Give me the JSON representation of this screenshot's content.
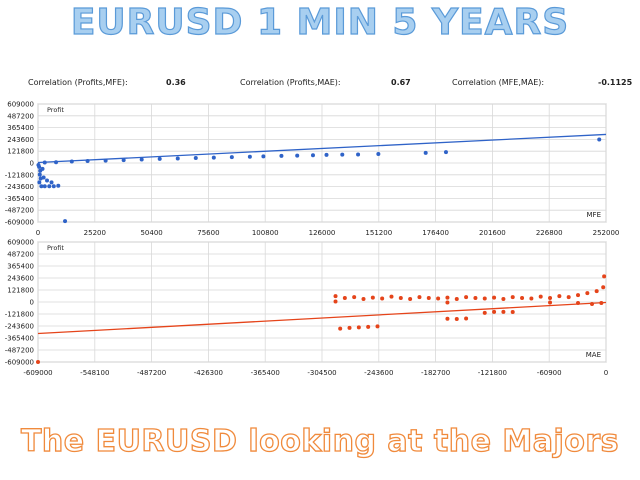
{
  "header": {
    "title": "EURUSD 1 MIN 5 YEARS"
  },
  "footer": {
    "title": "The EURUSD looking at the Majors"
  },
  "correlations": [
    {
      "label": "Correlation (Profits,MFE):",
      "value": "0.36"
    },
    {
      "label": "Correlation (Profits,MAE):",
      "value": "0.67"
    },
    {
      "label": "Correlation (MFE,MAE):",
      "value": "-0.1125"
    }
  ],
  "colors": {
    "mfe_series": "#2f63c8",
    "mae_series": "#e5441a",
    "grid": "#d8d8d8"
  },
  "chart_data": [
    {
      "type": "scatter",
      "title": "",
      "ylabel": "Profit",
      "xlabel": "MFE",
      "xlim": [
        0,
        252000
      ],
      "ylim": [
        -609000,
        609000
      ],
      "x_ticks": [
        0,
        25200,
        50400,
        75600,
        100800,
        126000,
        151200,
        176400,
        201600,
        226800,
        252000
      ],
      "y_ticks": [
        609000,
        487200,
        365400,
        243600,
        121800,
        0,
        -121800,
        -243600,
        -365400,
        -487200,
        -609000
      ],
      "grid": true,
      "trendline": {
        "x": [
          0,
          252000
        ],
        "y": [
          5000,
          295000
        ]
      },
      "series": [
        {
          "points": [
            [
              200,
              -20000
            ],
            [
              500,
              -40000
            ],
            [
              800,
              -120000
            ],
            [
              1200,
              -160000
            ],
            [
              600,
              -200000
            ],
            [
              1500,
              -240000
            ],
            [
              3000,
              -240000
            ],
            [
              5000,
              -240000
            ],
            [
              7000,
              -240000
            ],
            [
              9000,
              -235000
            ],
            [
              2500,
              -150000
            ],
            [
              4000,
              -180000
            ],
            [
              6000,
              -200000
            ],
            [
              1000,
              -80000
            ],
            [
              2000,
              -60000
            ],
            [
              12000,
              -600000
            ],
            [
              3000,
              5000
            ],
            [
              8000,
              8000
            ],
            [
              15000,
              15000
            ],
            [
              22000,
              20000
            ],
            [
              30000,
              25000
            ],
            [
              38000,
              30000
            ],
            [
              46000,
              36000
            ],
            [
              54000,
              42000
            ],
            [
              62000,
              46000
            ],
            [
              70000,
              52000
            ],
            [
              78000,
              56000
            ],
            [
              86000,
              60000
            ],
            [
              94000,
              64000
            ],
            [
              100000,
              68000
            ],
            [
              108000,
              74000
            ],
            [
              115000,
              76000
            ],
            [
              122000,
              80000
            ],
            [
              128000,
              84000
            ],
            [
              135000,
              86000
            ],
            [
              142000,
              88000
            ],
            [
              151000,
              93000
            ],
            [
              172000,
              105000
            ],
            [
              181000,
              112000
            ],
            [
              249000,
              242000
            ]
          ]
        }
      ]
    },
    {
      "type": "scatter",
      "title": "",
      "ylabel": "Profit",
      "xlabel": "MAE",
      "xlim": [
        -609000,
        0
      ],
      "ylim": [
        -609000,
        609000
      ],
      "x_ticks": [
        -609000,
        -548100,
        -487200,
        -426300,
        -365400,
        -304500,
        -243600,
        -182700,
        -121800,
        -60900,
        0
      ],
      "y_ticks": [
        609000,
        487200,
        365400,
        243600,
        121800,
        0,
        -121800,
        -243600,
        -365400,
        -487200,
        -609000
      ],
      "grid": true,
      "trendline": {
        "x": [
          -609000,
          0
        ],
        "y": [
          -320000,
          -5000
        ]
      },
      "series": [
        {
          "points": [
            [
              -609000,
              -609000
            ],
            [
              -290000,
              60000
            ],
            [
              -280000,
              40000
            ],
            [
              -270000,
              50000
            ],
            [
              -260000,
              30000
            ],
            [
              -250000,
              45000
            ],
            [
              -240000,
              35000
            ],
            [
              -230000,
              55000
            ],
            [
              -220000,
              40000
            ],
            [
              -210000,
              30000
            ],
            [
              -200000,
              50000
            ],
            [
              -190000,
              40000
            ],
            [
              -180000,
              35000
            ],
            [
              -170000,
              45000
            ],
            [
              -160000,
              30000
            ],
            [
              -150000,
              50000
            ],
            [
              -140000,
              40000
            ],
            [
              -130000,
              35000
            ],
            [
              -120000,
              45000
            ],
            [
              -110000,
              30000
            ],
            [
              -100000,
              50000
            ],
            [
              -90000,
              40000
            ],
            [
              -80000,
              35000
            ],
            [
              -70000,
              55000
            ],
            [
              -60000,
              40000
            ],
            [
              -50000,
              60000
            ],
            [
              -40000,
              50000
            ],
            [
              -30000,
              70000
            ],
            [
              -20000,
              90000
            ],
            [
              -10000,
              110000
            ],
            [
              -3000,
              150000
            ],
            [
              -2000,
              260000
            ],
            [
              -5000,
              -10000
            ],
            [
              -15000,
              -20000
            ],
            [
              -30000,
              -10000
            ],
            [
              -60000,
              -5000
            ],
            [
              -285000,
              -270000
            ],
            [
              -275000,
              -262000
            ],
            [
              -265000,
              -258000
            ],
            [
              -255000,
              -252000
            ],
            [
              -245000,
              -248000
            ],
            [
              -170000,
              -170000
            ],
            [
              -160000,
              -172000
            ],
            [
              -150000,
              -168000
            ],
            [
              -120000,
              -100000
            ],
            [
              -110000,
              -100000
            ],
            [
              -100000,
              -102000
            ],
            [
              -130000,
              -110000
            ],
            [
              -170000,
              -5000
            ],
            [
              -290000,
              5000
            ]
          ]
        }
      ]
    }
  ]
}
